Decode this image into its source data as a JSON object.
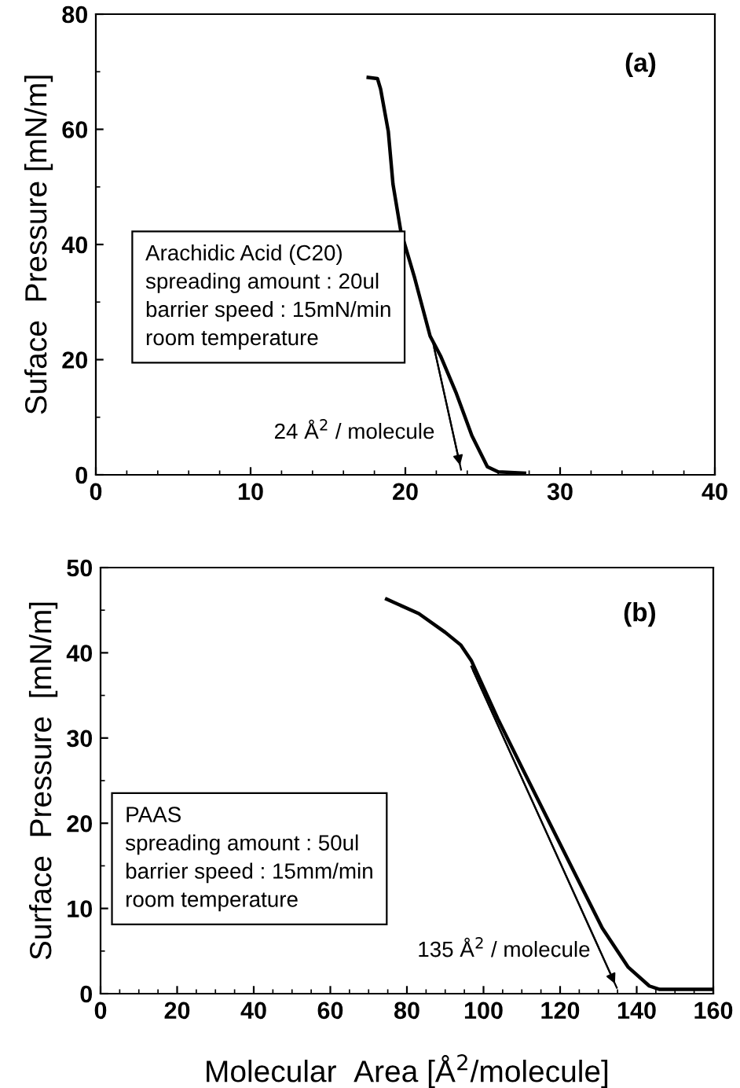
{
  "chart_data": [
    {
      "type": "line",
      "ylabel": "Suface  Pressure [mN/m]",
      "xlim": [
        0,
        40
      ],
      "ylim": [
        0,
        80
      ],
      "xticks": [
        0,
        10,
        20,
        30,
        40
      ],
      "yticks": [
        0,
        20,
        40,
        60,
        80
      ],
      "grid": false,
      "legend": false,
      "marker": "none",
      "line_style": "solid",
      "series": [
        {
          "color": "#000000",
          "x": [
            17.6,
            18.2,
            18.4,
            18.9,
            19.2,
            19.7,
            20.6,
            21.6,
            22.3,
            23.3,
            24.3,
            25.3,
            26,
            27.7
          ],
          "values": [
            69,
            68.8,
            67,
            59.6,
            50.5,
            42.4,
            34.2,
            24.1,
            20.5,
            14.1,
            6.8,
            1.4,
            0.5,
            0.3
          ]
        },
        {
          "color": "#000000",
          "x": [
            21.8,
            23.6
          ],
          "values": [
            22.8,
            0.9
          ]
        }
      ],
      "annotations": [
        "(a)",
        "Arachidic Acid (C20)\nspreading amount : 20ul\nbarrier speed : 15mN/min\nroom temperature",
        {
          "text": "24 Å$^{2}$ / molecule",
          "x": 23.6,
          "y": 0.9
        }
      ]
    },
    {
      "type": "line",
      "xlabel": "Molecular  Area [Å$^{2}$/molecule]",
      "ylabel": "Surface  Pressure  [mN/m]",
      "xlim": [
        0,
        160
      ],
      "ylim": [
        0,
        50
      ],
      "xticks": [
        0,
        20,
        40,
        60,
        80,
        100,
        120,
        140,
        160
      ],
      "yticks": [
        0,
        10,
        20,
        30,
        40,
        50
      ],
      "grid": false,
      "legend": false,
      "marker": "none",
      "line_style": "solid",
      "series": [
        {
          "color": "#000000",
          "x": [
            74.7,
            83.1,
            90,
            94.1,
            96.8,
            103.7,
            110.5,
            117.3,
            124.2,
            131,
            137.8,
            143.3,
            146,
            159.7
          ],
          "values": [
            46.3,
            44.6,
            42.4,
            40.9,
            39.1,
            32.3,
            26.1,
            20.0,
            13.8,
            7.7,
            3.1,
            0.9,
            0.5,
            0.5
          ]
        },
        {
          "color": "#000000",
          "x": [
            96.8,
            134.8
          ],
          "values": [
            38.4,
            0.7
          ]
        }
      ],
      "annotations": [
        "(b)",
        "PAAS\nspreading amount : 50ul\nbarrier speed : 15mm/min\nroom temperature",
        {
          "text": "135 Å$^{2}$ / molecule",
          "x": 134.8,
          "y": 0.7
        }
      ]
    }
  ]
}
